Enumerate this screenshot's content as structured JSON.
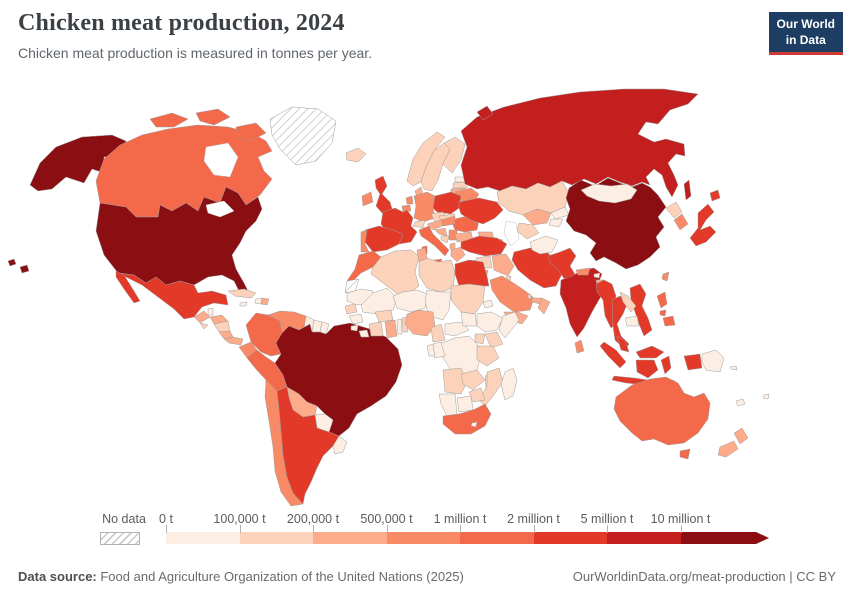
{
  "header": {
    "title": "Chicken meat production, 2024",
    "subtitle": "Chicken meat production is measured in tonnes per year."
  },
  "logo": {
    "line1": "Our World",
    "line2": "in Data"
  },
  "legend": {
    "no_data_label": "No data"
  },
  "footer": {
    "source_label": "Data source:",
    "source_text": " Food and Agriculture Organization of the United Nations (2025)",
    "link": "OurWorldinData.org/meat-production",
    "license_sep": " | CC BY"
  },
  "chart_data": {
    "type": "choropleth",
    "title": "Chicken meat production, 2024",
    "unit": "tonnes per year",
    "year": 2024,
    "legend_position": "bottom",
    "no_data": {
      "label": "No data",
      "pattern": "hatched"
    },
    "bins": [
      {
        "label": "0 t",
        "range": "0–100,000 t",
        "color": "#fdeee3"
      },
      {
        "label": "100,000 t",
        "range": "100,000–200,000 t",
        "color": "#fcd2ba"
      },
      {
        "label": "200,000 t",
        "range": "200,000–500,000 t",
        "color": "#fcab8b"
      },
      {
        "label": "500,000 t",
        "range": "500,000–1 million t",
        "color": "#f98a66"
      },
      {
        "label": "1 million t",
        "range": "1–2 million t",
        "color": "#f4694a"
      },
      {
        "label": "2 million t",
        "range": "2–5 million t",
        "color": "#e23929"
      },
      {
        "label": "5 million t",
        "range": "5–10 million t",
        "color": "#c31f1f"
      },
      {
        "label": "10 million t",
        "range": "10+ million t",
        "color": "#8b0e12"
      }
    ],
    "countries": {
      "united-states": 7,
      "canada": 4,
      "greenland": -1,
      "mexico": 5,
      "guatemala": 2,
      "belize": 0,
      "honduras": 2,
      "el-salvador": 1,
      "nicaragua": 1,
      "costa-rica": 2,
      "panama": 2,
      "cuba": 1,
      "jamaica": 0,
      "haiti": 0,
      "dominican-republic": 2,
      "colombia": 4,
      "venezuela": 3,
      "guyana": 0,
      "suriname": 0,
      "french-guiana": 0,
      "ecuador": 3,
      "peru": 4,
      "brazil": 7,
      "bolivia": 2,
      "paraguay": 0,
      "uruguay": 0,
      "chile": 3,
      "argentina": 5,
      "iceland": 1,
      "ireland": 3,
      "united-kingdom": 5,
      "norway": 1,
      "sweden": 1,
      "finland": 1,
      "denmark": 2,
      "estonia": 0,
      "latvia": 1,
      "lithuania": 2,
      "netherlands": 3,
      "belgium": 3,
      "germany": 3,
      "poland": 5,
      "czechia": 1,
      "slovakia": 1,
      "austria": 2,
      "switzerland": 1,
      "france": 5,
      "spain": 5,
      "portugal": 3,
      "italy": 4,
      "croatia": 2,
      "bosnia": 1,
      "serbia": 3,
      "albania": 2,
      "greece": 2,
      "bulgaria": 2,
      "romania": 4,
      "hungary": 3,
      "moldova": 1,
      "ukraine": 5,
      "belarus": 3,
      "russia": 6,
      "kazakhstan": 1,
      "uzbekistan": 2,
      "turkmenistan": 1,
      "kyrgyzstan": 0,
      "tajikistan": 0,
      "georgia": 2,
      "armenia": 1,
      "azerbaijan": 2,
      "turkey": 5,
      "cyprus": 0,
      "syria": 1,
      "lebanon": 1,
      "israel": 3,
      "jordan": 2,
      "iraq": 2,
      "iran": 5,
      "kuwait": 1,
      "saudi-arabia": 3,
      "qatar": 1,
      "uae": 2,
      "oman": 2,
      "yemen": 2,
      "afghanistan": 0,
      "pakistan": 5,
      "india": 6,
      "nepal": 3,
      "bhutan": 0,
      "bangladesh": 2,
      "sri-lanka": 3,
      "china": 7,
      "mongolia": 0,
      "north-korea": 1,
      "south-korea": 3,
      "japan": 5,
      "taiwan": 3,
      "myanmar": 5,
      "thailand": 5,
      "laos": 1,
      "cambodia": 0,
      "vietnam": 5,
      "malaysia": 5,
      "indonesia": 5,
      "timor": 0,
      "philippines": 4,
      "papua-new-guinea": 0,
      "morocco": 4,
      "western-sahara": -1,
      "algeria": 1,
      "tunisia": 2,
      "libya": 1,
      "egypt": 5,
      "mauritania": 0,
      "mali": 0,
      "niger": 0,
      "chad": 0,
      "sudan": 1,
      "eritrea": 0,
      "senegal": 1,
      "guinea": 0,
      "sierra-leone": 0,
      "liberia": 0,
      "ivory-coast": 1,
      "burkina-faso": 1,
      "ghana": 2,
      "togo": 0,
      "benin": 1,
      "nigeria": 2,
      "cameroon": 1,
      "central-african-republic": 0,
      "south-sudan": 0,
      "ethiopia": 0,
      "somalia": 0,
      "kenya": 1,
      "uganda": 1,
      "dr-congo": 0,
      "congo": 0,
      "gabon": 0,
      "tanzania": 1,
      "angola": 1,
      "zambia": 1,
      "malawi": 1,
      "mozambique": 1,
      "zimbabwe": 1,
      "botswana": 0,
      "namibia": 0,
      "south-africa": 4,
      "lesotho": 0,
      "madagascar": 0,
      "australia": 4,
      "new-zealand": 2,
      "fiji": 0,
      "new-caledonia": 0,
      "solomon-islands": 0
    }
  }
}
